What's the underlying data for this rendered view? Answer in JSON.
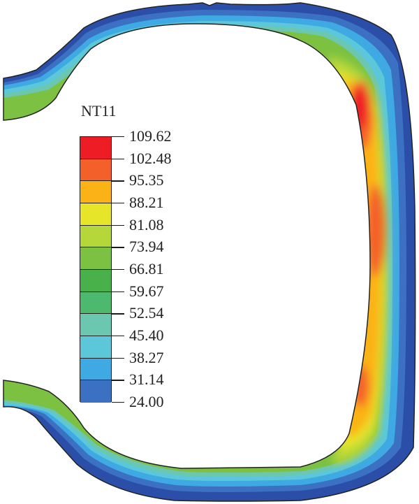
{
  "legend": {
    "title": "NT11",
    "levels": [
      {
        "label": "109.62",
        "color": "#ee1c25"
      },
      {
        "label": "102.48",
        "color": "#f4602a"
      },
      {
        "label": "95.35",
        "color": "#fbb217"
      },
      {
        "label": "88.21",
        "color": "#e7e52a"
      },
      {
        "label": "81.08",
        "color": "#b6d739"
      },
      {
        "label": "73.94",
        "color": "#7cc142"
      },
      {
        "label": "66.81",
        "color": "#49b14a"
      },
      {
        "label": "59.67",
        "color": "#4cb96e"
      },
      {
        "label": "52.54",
        "color": "#6cc7b0"
      },
      {
        "label": "45.40",
        "color": "#5bc7d8"
      },
      {
        "label": "38.27",
        "color": "#3fa9e3"
      },
      {
        "label": "31.14",
        "color": "#3b70c2"
      },
      {
        "label": "24.00",
        "color": "#2b4fa8"
      }
    ]
  },
  "colors": {
    "outline": "#222222",
    "hot": "#ee1c25",
    "cold": "#2b4fa8"
  }
}
